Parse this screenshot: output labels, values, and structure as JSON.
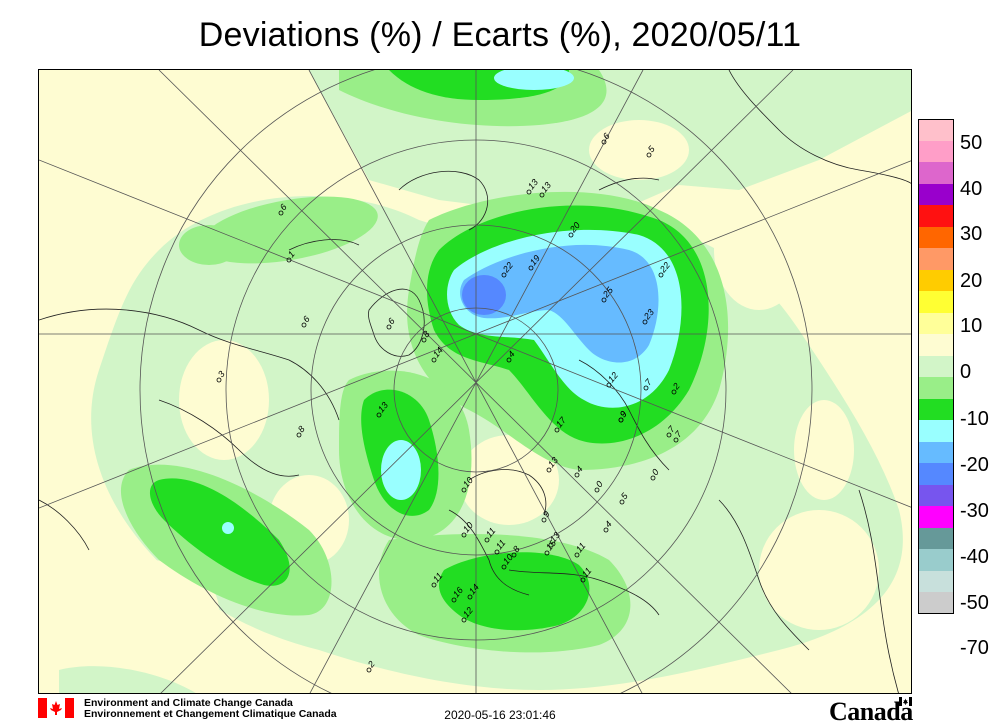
{
  "title": "Deviations (%) / Ecarts (%), 2020/05/11",
  "legend": {
    "swatches": [
      {
        "color": "#ffc0cb"
      },
      {
        "color": "#ff9ec8"
      },
      {
        "color": "#dd66cc"
      },
      {
        "color": "#9900cc"
      },
      {
        "color": "#ff1111"
      },
      {
        "color": "#ff6600"
      },
      {
        "color": "#ff9966"
      },
      {
        "color": "#ffcc00"
      },
      {
        "color": "#ffff33"
      },
      {
        "color": "#ffff99"
      },
      {
        "color": "#fefcd2"
      },
      {
        "color": "#d2f5c8"
      },
      {
        "color": "#99ee88"
      },
      {
        "color": "#22dd22"
      },
      {
        "color": "#99ffff"
      },
      {
        "color": "#66bbff"
      },
      {
        "color": "#5588ff"
      },
      {
        "color": "#7755ee"
      },
      {
        "color": "#ff00ff"
      },
      {
        "color": "#669999"
      },
      {
        "color": "#99cccc"
      },
      {
        "color": "#c8e0dc"
      },
      {
        "color": "#cccccc"
      }
    ],
    "labels": [
      "50",
      "40",
      "30",
      "20",
      "10",
      "0",
      "-10",
      "-20",
      "-30",
      "-40",
      "-50",
      "-70"
    ]
  },
  "stations": [
    {
      "label": "6"
    },
    {
      "label": "1"
    },
    {
      "label": "13"
    },
    {
      "label": "20"
    },
    {
      "label": "19"
    },
    {
      "label": "22"
    },
    {
      "label": "25"
    },
    {
      "label": "22"
    },
    {
      "label": "23"
    },
    {
      "label": "4"
    },
    {
      "label": "12"
    },
    {
      "label": "7"
    },
    {
      "label": "2"
    },
    {
      "label": "9"
    },
    {
      "label": "17"
    },
    {
      "label": "13"
    },
    {
      "label": "10"
    },
    {
      "label": "13"
    },
    {
      "label": "4"
    },
    {
      "label": "0"
    },
    {
      "label": "5"
    },
    {
      "label": "0"
    },
    {
      "label": "7"
    },
    {
      "label": "10"
    },
    {
      "label": "11"
    },
    {
      "label": "9"
    },
    {
      "label": "8"
    },
    {
      "label": "13"
    },
    {
      "label": "15"
    },
    {
      "label": "10"
    },
    {
      "label": "11"
    },
    {
      "label": "11"
    },
    {
      "label": "16"
    },
    {
      "label": "14"
    },
    {
      "label": "11"
    },
    {
      "label": "12"
    },
    {
      "label": "11"
    },
    {
      "label": "4"
    },
    {
      "label": "2"
    },
    {
      "label": "8"
    },
    {
      "label": "6"
    },
    {
      "label": "8"
    },
    {
      "label": "14"
    },
    {
      "label": "6"
    },
    {
      "label": "3"
    },
    {
      "label": "6"
    },
    {
      "label": "5"
    },
    {
      "label": "9"
    },
    {
      "label": "13"
    },
    {
      "label": "7"
    }
  ],
  "footer": {
    "org_en": "Environment and Climate Change Canada",
    "org_fr": "Environnement et Changement Climatique Canada",
    "timestamp": "2020-05-16 23:01:46",
    "wordmark": "Canada"
  },
  "colors": {
    "bg": "#fefcd2",
    "light_green": "#d2f5c8",
    "green": "#99ee88",
    "bright_green": "#22dd22",
    "cyan": "#99ffff",
    "blue": "#66bbff",
    "dark_blue": "#5588ff",
    "flag_red": "#ff0000"
  }
}
